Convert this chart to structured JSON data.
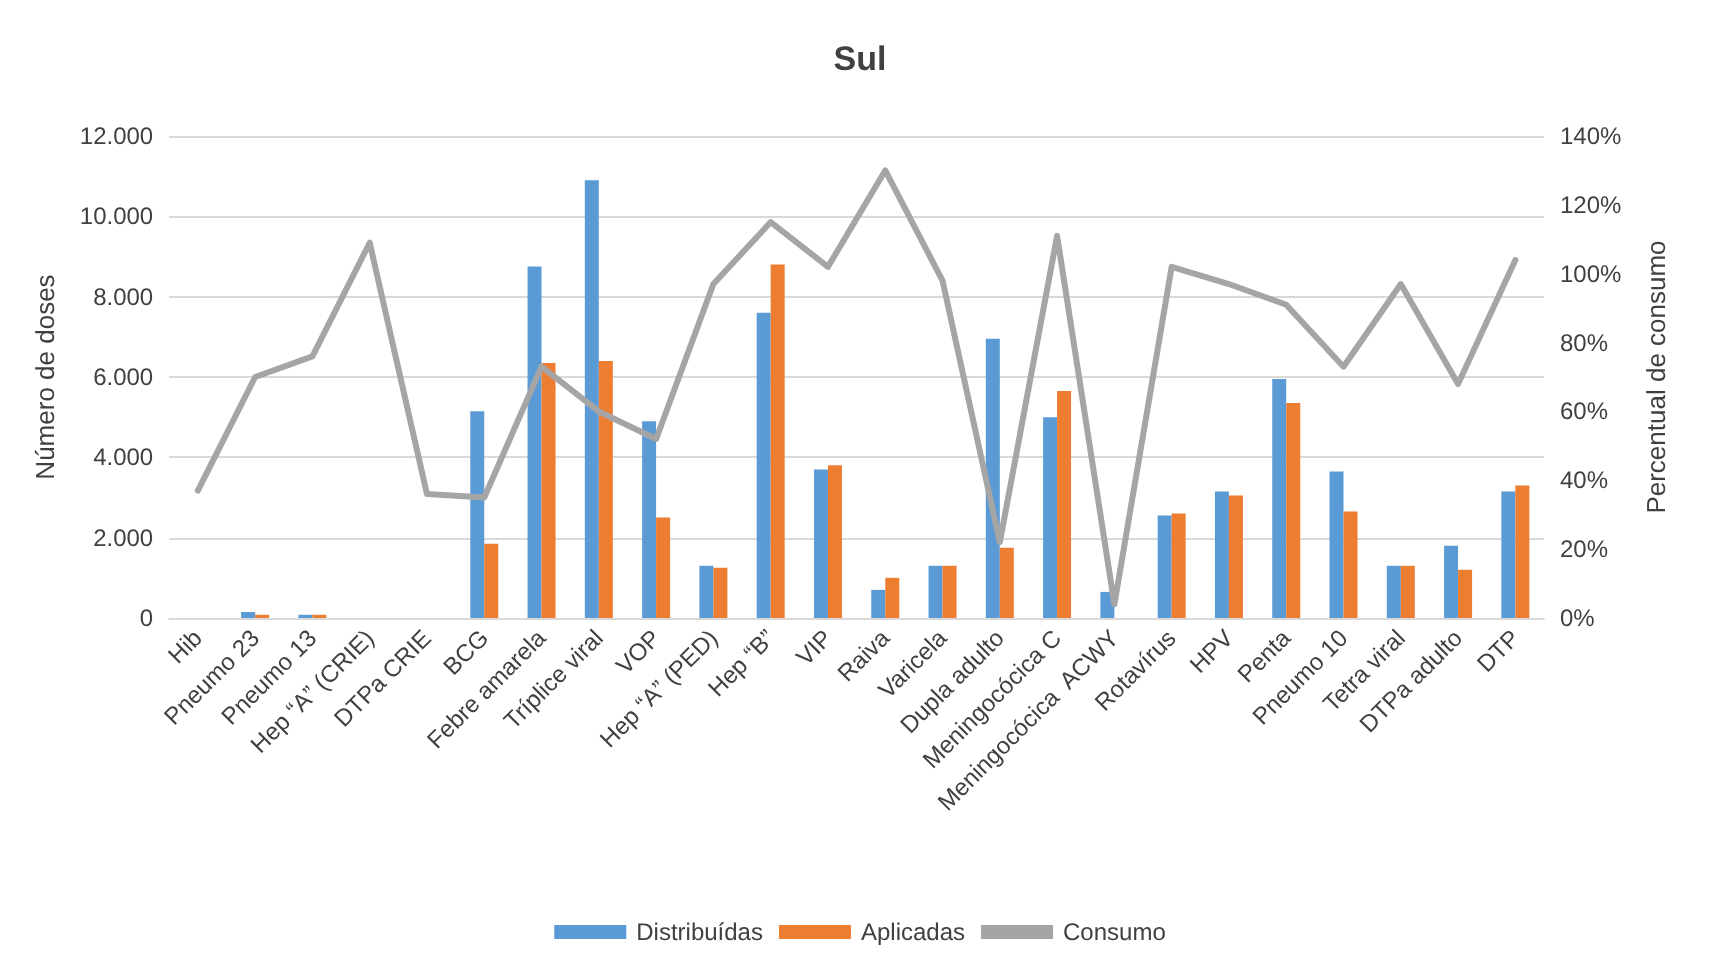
{
  "chart_data": {
    "type": "bar",
    "title": "Sul",
    "ylabel": "Número de doses",
    "y2label": "Percentual de consumo",
    "categories": [
      "Hib",
      "Pneumo 23",
      "Pneumo 13",
      "Hep “A” (CRIE)",
      "DTPa CRIE",
      "BCG",
      "Febre amarela",
      "Tríplice viral",
      "VOP",
      "Hep “A” (PED)",
      "Hep “B”",
      "VIP",
      "Raiva",
      "Varicela",
      "Dupla adulto",
      "Meningocócica C",
      "Meningocócica  ACWY",
      "Rotavírus",
      "HPV",
      "Penta",
      "Pneumo 10",
      "Tetra viral",
      "DTPa adulto",
      "DTP"
    ],
    "series": [
      {
        "name": "Distribuídas",
        "color": "#5b9bd5",
        "values": [
          0,
          150,
          80,
          0,
          0,
          5150,
          8750,
          10900,
          4900,
          1300,
          7600,
          3700,
          700,
          1300,
          6950,
          5000,
          650,
          2550,
          3150,
          5950,
          3650,
          1300,
          1800,
          3150
        ]
      },
      {
        "name": "Aplicadas",
        "color": "#ed7d31",
        "values": [
          0,
          80,
          80,
          0,
          0,
          1850,
          6350,
          6400,
          2500,
          1250,
          8800,
          3800,
          1000,
          1300,
          1750,
          5650,
          0,
          2600,
          3050,
          5350,
          2650,
          1300,
          1200,
          3300
        ]
      },
      {
        "name": "Consumo",
        "type": "line",
        "axis": "y2",
        "color": "#a5a5a5",
        "values": [
          37,
          70,
          76,
          109,
          36,
          35,
          73,
          60,
          52,
          97,
          115,
          102,
          130,
          98,
          22,
          111,
          4,
          102,
          97,
          91,
          73,
          97,
          68,
          104
        ]
      }
    ],
    "ylim": [
      0,
      12000
    ],
    "yticks": [
      {
        "value": 0,
        "label": "0"
      },
      {
        "value": 2000,
        "label": "2.000"
      },
      {
        "value": 4000,
        "label": "4.000"
      },
      {
        "value": 6000,
        "label": "6.000"
      },
      {
        "value": 8000,
        "label": "8.000"
      },
      {
        "value": 10000,
        "label": "10.000"
      },
      {
        "value": 12000,
        "label": "12.000"
      }
    ],
    "y2lim": [
      0,
      140
    ],
    "y2ticks": [
      {
        "value": 0,
        "label": "0%"
      },
      {
        "value": 20,
        "label": "20%"
      },
      {
        "value": 40,
        "label": "40%"
      },
      {
        "value": 60,
        "label": "60%"
      },
      {
        "value": 80,
        "label": "80%"
      },
      {
        "value": 100,
        "label": "100%"
      },
      {
        "value": 120,
        "label": "120%"
      },
      {
        "value": 140,
        "label": "140%"
      }
    ],
    "grid": "y",
    "legend": "bottom",
    "marker": "none",
    "line_style": "solid"
  }
}
